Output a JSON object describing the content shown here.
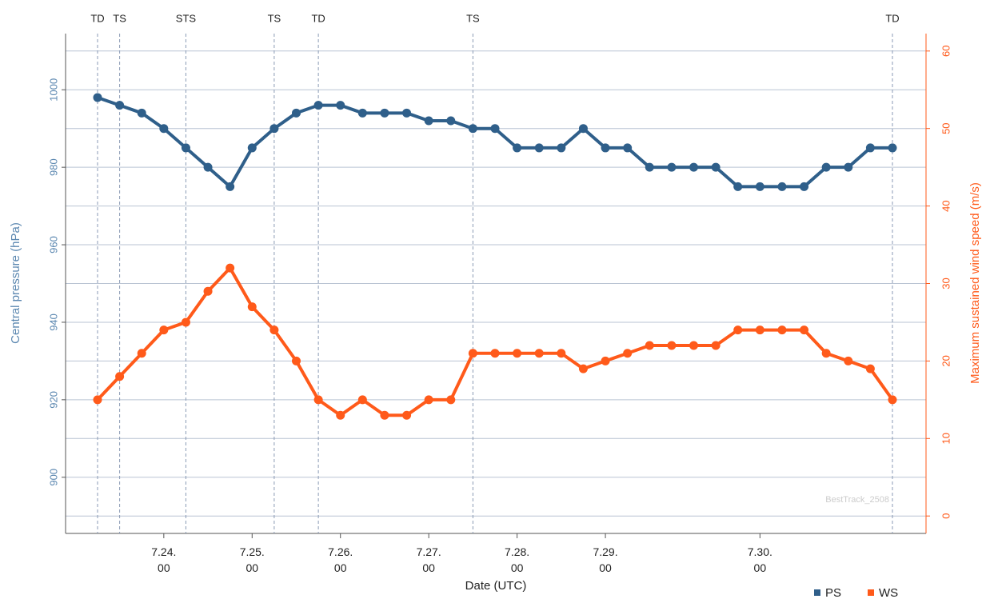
{
  "chart_data": {
    "type": "line",
    "xlabel": "Date (UTC)",
    "ylabel": "Central pressure (hPa)",
    "y2label": "Maximum sustained wind speed (m/s)",
    "watermark": "BestTrack_2508",
    "categories": [
      null,
      null,
      null,
      "7.24.\n00",
      null,
      null,
      null,
      "7.25.\n00",
      null,
      null,
      null,
      "7.26.\n00",
      null,
      null,
      null,
      "7.27.\n00",
      null,
      null,
      null,
      "7.28.\n00",
      null,
      null,
      null,
      "7.29.\n00",
      null,
      null,
      null,
      null,
      null,
      null,
      "7.30.\n00",
      null,
      null,
      null,
      null,
      null,
      null
    ],
    "stages": [
      "TD",
      "TS",
      null,
      null,
      "STS",
      null,
      null,
      null,
      "TS",
      null,
      "TD",
      null,
      null,
      null,
      null,
      null,
      null,
      "TS",
      null,
      null,
      null,
      null,
      null,
      null,
      null,
      null,
      null,
      null,
      null,
      null,
      null,
      null,
      null,
      null,
      null,
      null,
      "TD"
    ],
    "series": [
      {
        "name": "PS",
        "color": "#2f5f8a",
        "values": [
          998,
          996,
          994,
          990,
          985,
          980,
          975,
          985,
          990,
          994,
          996,
          996,
          994,
          994,
          994,
          992,
          992,
          990,
          990,
          985,
          985,
          985,
          990,
          985,
          985,
          980,
          980,
          980,
          980,
          975,
          975,
          975,
          975,
          980,
          980,
          985,
          985
        ]
      },
      {
        "name": "WS",
        "color": "#ff5a1a",
        "axis": "y2",
        "values": [
          15,
          18,
          21,
          24,
          25,
          29,
          32,
          27,
          24,
          20,
          15,
          13,
          15,
          13,
          13,
          15,
          15,
          21,
          21,
          21,
          21,
          21,
          19,
          20,
          21,
          22,
          22,
          22,
          22,
          24,
          24,
          24,
          24,
          21,
          20,
          19,
          15
        ]
      }
    ],
    "ylim": [
      885.5,
      1014.5
    ],
    "yticks": [
      900,
      920,
      940,
      960,
      980,
      1000
    ],
    "ygrid": [
      890,
      900,
      910,
      920,
      930,
      940,
      950,
      960,
      970,
      980,
      990,
      1000,
      1010
    ],
    "y2lim": [
      -2.25,
      62.25
    ],
    "y2ticks": [
      0,
      10,
      20,
      30,
      40,
      50,
      60
    ],
    "grid": true,
    "legend": "bottom-right"
  }
}
